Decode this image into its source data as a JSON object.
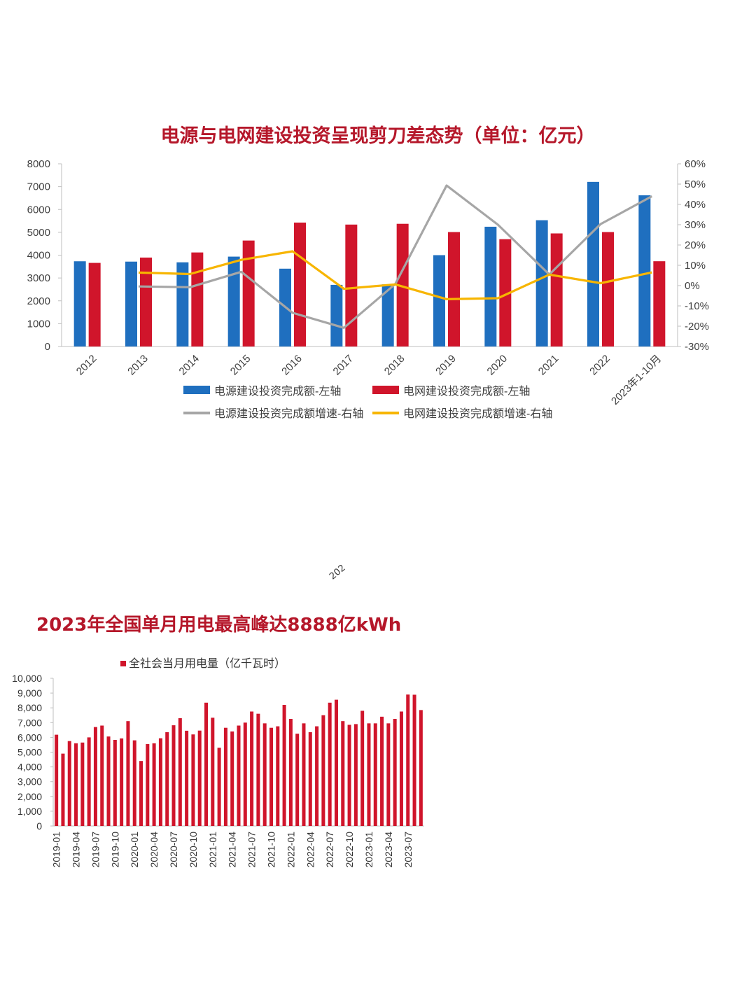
{
  "charts": {
    "investment": {
      "title": "电源与电网建设投资呈现剪刀差态势（单位：亿元）",
      "chart_data": {
        "type": "bar",
        "categories": [
          "2012",
          "2013",
          "2014",
          "2015",
          "2016",
          "2017",
          "2018",
          "2019",
          "2020",
          "2021",
          "2022",
          "2023年1-10月"
        ],
        "y_left_ticks": [
          "0",
          "1000",
          "2000",
          "3000",
          "4000",
          "5000",
          "6000",
          "7000",
          "8000"
        ],
        "y_right_ticks": [
          "-30%",
          "-20%",
          "-10%",
          "0%",
          "10%",
          "20%",
          "30%",
          "40%",
          "50%",
          "60%"
        ],
        "ylim_left": [
          0,
          8000
        ],
        "ylim_right": [
          -30,
          60
        ],
        "series": [
          {
            "name": "电源建设投资完成额-左轴",
            "type": "bar",
            "axis": "left",
            "color": "#1f6fbf",
            "values": [
              3732,
              3717,
              3686,
              3936,
              3408,
              2700,
              2721,
              4000,
              5244,
              5530,
              7208,
              6620
            ]
          },
          {
            "name": "电网建设投资完成额-左轴",
            "type": "bar",
            "axis": "left",
            "color": "#d0152b",
            "values": [
              3661,
              3894,
              4118,
              4640,
              5426,
              5339,
              5373,
              5012,
              4699,
              4951,
              5012,
              3734
            ]
          },
          {
            "name": "电源建设投资完成额增速-右轴",
            "type": "line",
            "axis": "right",
            "color": "#a6a6a6",
            "values": [
              null,
              -0.4,
              -0.8,
              6.8,
              -13.4,
              -20.8,
              0.8,
              49.3,
              30.0,
              5.5,
              30.3,
              44.0
            ]
          },
          {
            "name": "电网建设投资完成额增速-右轴",
            "type": "line",
            "axis": "right",
            "color": "#f7b500",
            "values": [
              null,
              6.4,
              5.7,
              12.7,
              16.9,
              -1.6,
              0.6,
              -6.7,
              -6.2,
              5.4,
              1.2,
              6.5
            ]
          }
        ],
        "legend_position": "bottom"
      }
    },
    "electricity": {
      "title": "2023年全国单月用电最高峰达8888亿kWh",
      "chart_data": {
        "type": "bar",
        "legend": "全社会当月用电量（亿千瓦时）",
        "color": "#d0152b",
        "ylim": [
          0,
          10000
        ],
        "y_ticks": [
          "0",
          "1,000",
          "2,000",
          "3,000",
          "4,000",
          "5,000",
          "6,000",
          "7,000",
          "8,000",
          "9,000",
          "10,000"
        ],
        "tick_labels": [
          {
            "index": 0,
            "label": "2019-01"
          },
          {
            "index": 3,
            "label": "2019-04"
          },
          {
            "index": 6,
            "label": "2019-07"
          },
          {
            "index": 9,
            "label": "2019-10"
          },
          {
            "index": 12,
            "label": "2020-01"
          },
          {
            "index": 15,
            "label": "2020-04"
          },
          {
            "index": 18,
            "label": "2020-07"
          },
          {
            "index": 21,
            "label": "2020-10"
          },
          {
            "index": 24,
            "label": "2021-01"
          },
          {
            "index": 27,
            "label": "2021-04"
          },
          {
            "index": 30,
            "label": "2021-07"
          },
          {
            "index": 33,
            "label": "2021-10"
          },
          {
            "index": 36,
            "label": "2022-01"
          },
          {
            "index": 39,
            "label": "2022-04"
          },
          {
            "index": 42,
            "label": "2022-07"
          },
          {
            "index": 45,
            "label": "2022-10"
          },
          {
            "index": 48,
            "label": "2023-01"
          },
          {
            "index": 51,
            "label": "2023-04"
          },
          {
            "index": 54,
            "label": "2023-07"
          }
        ],
        "values": [
          6180,
          4900,
          5750,
          5600,
          5650,
          6000,
          6700,
          6800,
          6060,
          5830,
          5930,
          7100,
          5800,
          4400,
          5550,
          5600,
          5940,
          6350,
          6820,
          7300,
          6450,
          6200,
          6460,
          8350,
          7330,
          5300,
          6650,
          6400,
          6800,
          7000,
          7750,
          7600,
          6950,
          6650,
          6750,
          8200,
          7250,
          6250,
          6950,
          6350,
          6750,
          7500,
          8350,
          8550,
          7100,
          6850,
          6900,
          7800,
          6950,
          6950,
          7400,
          6950,
          7250,
          7750,
          8900,
          8888,
          7850
        ]
      }
    }
  },
  "fragment_text": "202"
}
